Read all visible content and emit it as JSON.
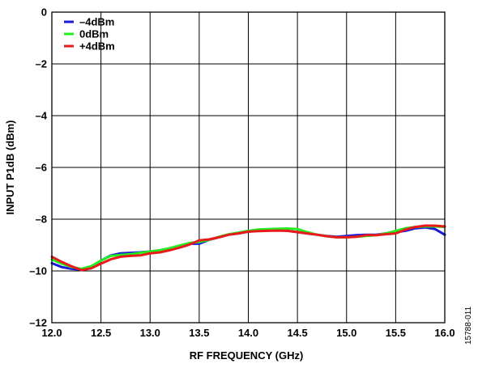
{
  "chart_data": {
    "type": "line",
    "xlabel": "RF FREQUENCY (GHz)",
    "ylabel": "INPUT P1dB (dBm)",
    "xlim": [
      12.0,
      16.0
    ],
    "ylim": [
      -12,
      0
    ],
    "xticks": [
      12.0,
      12.5,
      13.0,
      13.5,
      14.0,
      14.5,
      15.0,
      15.5,
      16.0
    ],
    "xtick_labels": [
      "12.0",
      "12.5",
      "13.0",
      "13.5",
      "14.0",
      "14.5",
      "15.0",
      "15.5",
      "16.0"
    ],
    "yticks": [
      0,
      -2,
      -4,
      -6,
      -8,
      -10,
      -12
    ],
    "ytick_labels": [
      "0",
      "–2",
      "–4",
      "–6",
      "–8",
      "–10",
      "–12"
    ],
    "grid": true,
    "legend_position": "top-left",
    "series": [
      {
        "name": "–4dBm",
        "color": "#1a1adb",
        "x": [
          12.0,
          12.1,
          12.2,
          12.3,
          12.4,
          12.5,
          12.6,
          12.7,
          12.8,
          12.9,
          13.0,
          13.1,
          13.2,
          13.3,
          13.4,
          13.5,
          13.6,
          13.7,
          13.8,
          13.9,
          14.0,
          14.1,
          14.2,
          14.3,
          14.4,
          14.5,
          14.6,
          14.7,
          14.8,
          14.9,
          15.0,
          15.1,
          15.2,
          15.3,
          15.4,
          15.5,
          15.6,
          15.7,
          15.8,
          15.9,
          16.0
        ],
        "y": [
          -9.7,
          -9.85,
          -9.92,
          -9.95,
          -9.85,
          -9.6,
          -9.4,
          -9.32,
          -9.3,
          -9.28,
          -9.25,
          -9.2,
          -9.15,
          -9.05,
          -8.95,
          -8.95,
          -8.8,
          -8.7,
          -8.6,
          -8.55,
          -8.48,
          -8.45,
          -8.43,
          -8.43,
          -8.45,
          -8.5,
          -8.55,
          -8.6,
          -8.65,
          -8.68,
          -8.65,
          -8.62,
          -8.6,
          -8.6,
          -8.55,
          -8.5,
          -8.45,
          -8.35,
          -8.32,
          -8.38,
          -8.6
        ]
      },
      {
        "name": "0dBm",
        "color": "#22ee22",
        "x": [
          12.0,
          12.1,
          12.2,
          12.3,
          12.4,
          12.5,
          12.6,
          12.7,
          12.8,
          12.9,
          13.0,
          13.1,
          13.2,
          13.3,
          13.4,
          13.5,
          13.6,
          13.7,
          13.8,
          13.9,
          14.0,
          14.1,
          14.2,
          14.3,
          14.4,
          14.5,
          14.6,
          14.7,
          14.8,
          14.9,
          15.0,
          15.1,
          15.2,
          15.3,
          15.4,
          15.5,
          15.6,
          15.7,
          15.8,
          15.9,
          16.0
        ],
        "y": [
          -9.55,
          -9.72,
          -9.85,
          -9.92,
          -9.82,
          -9.6,
          -9.42,
          -9.38,
          -9.35,
          -9.3,
          -9.25,
          -9.2,
          -9.12,
          -9.02,
          -8.92,
          -8.88,
          -8.8,
          -8.68,
          -8.58,
          -8.52,
          -8.45,
          -8.4,
          -8.38,
          -8.37,
          -8.36,
          -8.38,
          -8.5,
          -8.6,
          -8.66,
          -8.7,
          -8.7,
          -8.68,
          -8.65,
          -8.62,
          -8.55,
          -8.45,
          -8.35,
          -8.3,
          -8.28,
          -8.28,
          -8.3
        ]
      },
      {
        "name": "+4dBm",
        "color": "#e81a1a",
        "x": [
          12.0,
          12.1,
          12.2,
          12.3,
          12.4,
          12.5,
          12.6,
          12.7,
          12.8,
          12.9,
          13.0,
          13.1,
          13.2,
          13.3,
          13.4,
          13.5,
          13.6,
          13.7,
          13.8,
          13.9,
          14.0,
          14.1,
          14.2,
          14.3,
          14.4,
          14.5,
          14.6,
          14.7,
          14.8,
          14.9,
          15.0,
          15.1,
          15.2,
          15.3,
          15.4,
          15.5,
          15.6,
          15.7,
          15.8,
          15.9,
          16.0
        ],
        "y": [
          -9.45,
          -9.65,
          -9.82,
          -9.97,
          -9.9,
          -9.72,
          -9.55,
          -9.45,
          -9.42,
          -9.4,
          -9.32,
          -9.28,
          -9.2,
          -9.1,
          -8.98,
          -8.82,
          -8.78,
          -8.7,
          -8.6,
          -8.55,
          -8.48,
          -8.46,
          -8.45,
          -8.44,
          -8.45,
          -8.5,
          -8.55,
          -8.6,
          -8.66,
          -8.7,
          -8.7,
          -8.68,
          -8.62,
          -8.62,
          -8.58,
          -8.55,
          -8.4,
          -8.3,
          -8.25,
          -8.25,
          -8.28
        ]
      }
    ]
  },
  "figure_id": "15788-011"
}
